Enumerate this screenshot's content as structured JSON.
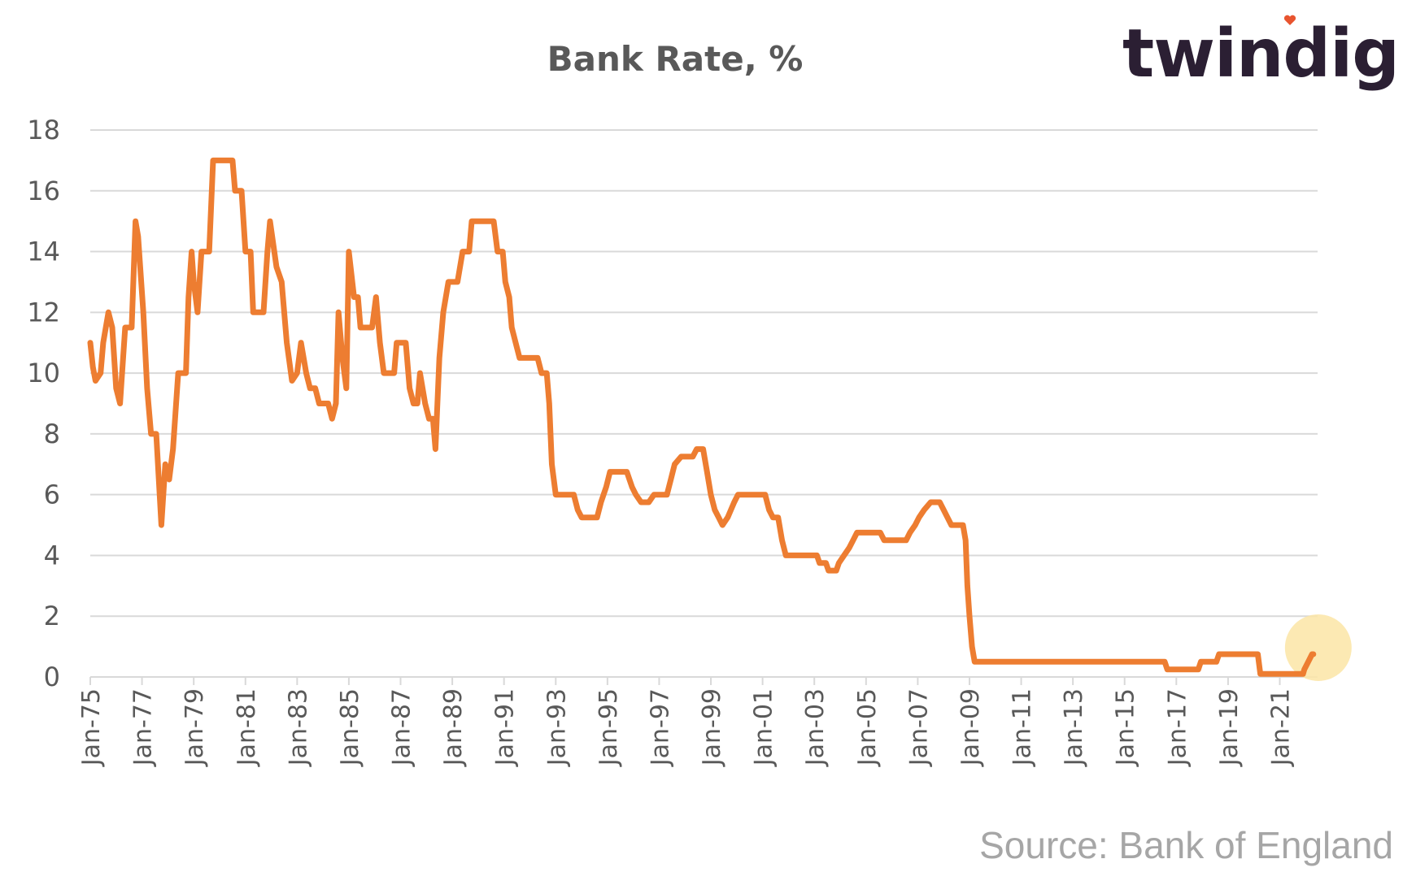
{
  "logo": {
    "text": "twindig",
    "accent_color": "#e8542f"
  },
  "source": "Source: Bank of England",
  "chart_data": {
    "type": "line",
    "title": "Bank Rate, %",
    "xlabel": "",
    "ylabel": "",
    "x_start_year": 1975,
    "x_end_year": 2022.4,
    "ylim": [
      0,
      18
    ],
    "y_ticks": [
      "0",
      "2",
      "4",
      "6",
      "8",
      "10",
      "12",
      "14",
      "16",
      "18"
    ],
    "x_ticks": [
      {
        "label": "Jan-75",
        "year": 1975
      },
      {
        "label": "Jan-77",
        "year": 1977
      },
      {
        "label": "Jan-79",
        "year": 1979
      },
      {
        "label": "Jan-81",
        "year": 1981
      },
      {
        "label": "Jan-83",
        "year": 1983
      },
      {
        "label": "Jan-85",
        "year": 1985
      },
      {
        "label": "Jan-87",
        "year": 1987
      },
      {
        "label": "Jan-89",
        "year": 1989
      },
      {
        "label": "Jan-91",
        "year": 1991
      },
      {
        "label": "Jan-93",
        "year": 1993
      },
      {
        "label": "Jan-95",
        "year": 1995
      },
      {
        "label": "Jan-97",
        "year": 1997
      },
      {
        "label": "Jan-99",
        "year": 1999
      },
      {
        "label": "Jan-01",
        "year": 2001
      },
      {
        "label": "Jan-03",
        "year": 2003
      },
      {
        "label": "Jan-05",
        "year": 2005
      },
      {
        "label": "Jan-07",
        "year": 2007
      },
      {
        "label": "Jan-09",
        "year": 2009
      },
      {
        "label": "Jan-11",
        "year": 2011
      },
      {
        "label": "Jan-13",
        "year": 2013
      },
      {
        "label": "Jan-15",
        "year": 2015
      },
      {
        "label": "Jan-17",
        "year": 2017
      },
      {
        "label": "Jan-19",
        "year": 2019
      },
      {
        "label": "Jan-21",
        "year": 2021
      }
    ],
    "grid": true,
    "legend": "none",
    "line_color": "#ed7d31",
    "highlight_color": "#fbe5a6",
    "highlight_point": {
      "year": 2022.3,
      "value": 0.75
    },
    "series": [
      {
        "points": [
          [
            1975.0,
            11.0
          ],
          [
            1975.1,
            10.2
          ],
          [
            1975.2,
            9.75
          ],
          [
            1975.4,
            10.0
          ],
          [
            1975.5,
            11.0
          ],
          [
            1975.7,
            12.0
          ],
          [
            1975.85,
            11.5
          ],
          [
            1976.0,
            9.5
          ],
          [
            1976.15,
            9.0
          ],
          [
            1976.35,
            11.5
          ],
          [
            1976.6,
            11.5
          ],
          [
            1976.75,
            15.0
          ],
          [
            1976.85,
            14.5
          ],
          [
            1977.05,
            12.0
          ],
          [
            1977.2,
            9.5
          ],
          [
            1977.35,
            8.0
          ],
          [
            1977.55,
            8.0
          ],
          [
            1977.75,
            5.0
          ],
          [
            1977.9,
            7.0
          ],
          [
            1978.05,
            6.5
          ],
          [
            1978.2,
            7.5
          ],
          [
            1978.4,
            10.0
          ],
          [
            1978.7,
            10.0
          ],
          [
            1978.8,
            12.5
          ],
          [
            1978.92,
            14.0
          ],
          [
            1979.0,
            13.0
          ],
          [
            1979.15,
            12.0
          ],
          [
            1979.3,
            14.0
          ],
          [
            1979.6,
            14.0
          ],
          [
            1979.75,
            17.0
          ],
          [
            1980.5,
            17.0
          ],
          [
            1980.6,
            16.0
          ],
          [
            1980.85,
            16.0
          ],
          [
            1981.0,
            14.0
          ],
          [
            1981.2,
            14.0
          ],
          [
            1981.3,
            12.0
          ],
          [
            1981.7,
            12.0
          ],
          [
            1981.85,
            14.0
          ],
          [
            1981.95,
            15.0
          ],
          [
            1982.2,
            13.5
          ],
          [
            1982.4,
            13.0
          ],
          [
            1982.6,
            11.0
          ],
          [
            1982.8,
            9.75
          ],
          [
            1983.0,
            10.0
          ],
          [
            1983.15,
            11.0
          ],
          [
            1983.35,
            10.0
          ],
          [
            1983.5,
            9.5
          ],
          [
            1983.7,
            9.5
          ],
          [
            1983.85,
            9.0
          ],
          [
            1984.2,
            9.0
          ],
          [
            1984.35,
            8.5
          ],
          [
            1984.5,
            9.0
          ],
          [
            1984.6,
            12.0
          ],
          [
            1984.75,
            10.5
          ],
          [
            1984.9,
            9.5
          ],
          [
            1985.0,
            14.0
          ],
          [
            1985.2,
            12.5
          ],
          [
            1985.35,
            12.5
          ],
          [
            1985.45,
            11.5
          ],
          [
            1985.9,
            11.5
          ],
          [
            1986.05,
            12.5
          ],
          [
            1986.2,
            11.0
          ],
          [
            1986.35,
            10.0
          ],
          [
            1986.75,
            10.0
          ],
          [
            1986.85,
            11.0
          ],
          [
            1987.2,
            11.0
          ],
          [
            1987.35,
            9.5
          ],
          [
            1987.5,
            9.0
          ],
          [
            1987.65,
            9.0
          ],
          [
            1987.75,
            10.0
          ],
          [
            1987.95,
            9.0
          ],
          [
            1988.1,
            8.5
          ],
          [
            1988.25,
            8.5
          ],
          [
            1988.35,
            7.5
          ],
          [
            1988.5,
            10.5
          ],
          [
            1988.65,
            12.0
          ],
          [
            1988.85,
            13.0
          ],
          [
            1989.2,
            13.0
          ],
          [
            1989.4,
            14.0
          ],
          [
            1989.65,
            14.0
          ],
          [
            1989.75,
            15.0
          ],
          [
            1990.6,
            15.0
          ],
          [
            1990.75,
            14.0
          ],
          [
            1990.95,
            14.0
          ],
          [
            1991.05,
            13.0
          ],
          [
            1991.2,
            12.5
          ],
          [
            1991.3,
            11.5
          ],
          [
            1991.45,
            11.0
          ],
          [
            1991.6,
            10.5
          ],
          [
            1992.3,
            10.5
          ],
          [
            1992.45,
            10.0
          ],
          [
            1992.65,
            10.0
          ],
          [
            1992.75,
            9.0
          ],
          [
            1992.85,
            7.0
          ],
          [
            1993.0,
            6.0
          ],
          [
            1993.7,
            6.0
          ],
          [
            1993.85,
            5.5
          ],
          [
            1994.0,
            5.25
          ],
          [
            1994.6,
            5.25
          ],
          [
            1994.75,
            5.75
          ],
          [
            1994.95,
            6.25
          ],
          [
            1995.1,
            6.75
          ],
          [
            1995.75,
            6.75
          ],
          [
            1995.95,
            6.25
          ],
          [
            1996.1,
            6.0
          ],
          [
            1996.3,
            5.75
          ],
          [
            1996.6,
            5.75
          ],
          [
            1996.8,
            6.0
          ],
          [
            1997.3,
            6.0
          ],
          [
            1997.45,
            6.5
          ],
          [
            1997.6,
            7.0
          ],
          [
            1997.85,
            7.25
          ],
          [
            1998.3,
            7.25
          ],
          [
            1998.45,
            7.5
          ],
          [
            1998.7,
            7.5
          ],
          [
            1998.85,
            6.75
          ],
          [
            1999.0,
            6.0
          ],
          [
            1999.15,
            5.5
          ],
          [
            1999.3,
            5.25
          ],
          [
            1999.45,
            5.0
          ],
          [
            1999.65,
            5.25
          ],
          [
            1999.9,
            5.75
          ],
          [
            2000.05,
            6.0
          ],
          [
            2001.1,
            6.0
          ],
          [
            2001.25,
            5.5
          ],
          [
            2001.4,
            5.25
          ],
          [
            2001.6,
            5.25
          ],
          [
            2001.75,
            4.5
          ],
          [
            2001.9,
            4.0
          ],
          [
            2003.1,
            4.0
          ],
          [
            2003.2,
            3.75
          ],
          [
            2003.45,
            3.75
          ],
          [
            2003.55,
            3.5
          ],
          [
            2003.85,
            3.5
          ],
          [
            2003.95,
            3.75
          ],
          [
            2004.15,
            4.0
          ],
          [
            2004.35,
            4.25
          ],
          [
            2004.5,
            4.5
          ],
          [
            2004.65,
            4.75
          ],
          [
            2005.55,
            4.75
          ],
          [
            2005.7,
            4.5
          ],
          [
            2006.55,
            4.5
          ],
          [
            2006.7,
            4.75
          ],
          [
            2006.9,
            5.0
          ],
          [
            2007.05,
            5.25
          ],
          [
            2007.25,
            5.5
          ],
          [
            2007.5,
            5.75
          ],
          [
            2007.85,
            5.75
          ],
          [
            2008.0,
            5.5
          ],
          [
            2008.15,
            5.25
          ],
          [
            2008.3,
            5.0
          ],
          [
            2008.75,
            5.0
          ],
          [
            2008.85,
            4.5
          ],
          [
            2008.92,
            3.0
          ],
          [
            2009.0,
            2.0
          ],
          [
            2009.1,
            1.0
          ],
          [
            2009.2,
            0.5
          ],
          [
            2016.55,
            0.5
          ],
          [
            2016.65,
            0.25
          ],
          [
            2017.85,
            0.25
          ],
          [
            2017.95,
            0.5
          ],
          [
            2018.55,
            0.5
          ],
          [
            2018.65,
            0.75
          ],
          [
            2020.15,
            0.75
          ],
          [
            2020.25,
            0.1
          ],
          [
            2021.9,
            0.1
          ],
          [
            2021.95,
            0.25
          ],
          [
            2022.1,
            0.5
          ],
          [
            2022.25,
            0.75
          ],
          [
            2022.3,
            0.75
          ]
        ]
      }
    ]
  }
}
